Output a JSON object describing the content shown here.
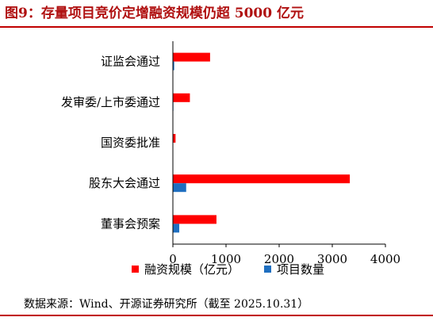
{
  "header": {
    "title": "图9：存量项目竞价定增融资规模仍超 5000 亿元"
  },
  "footer": {
    "source": "数据来源：Wind、开源证券研究所（截至 2025.10.31）"
  },
  "colors": {
    "series1": "#ff0000",
    "series2": "#1f6fc0",
    "title": "#b01010",
    "rule": "#c00000"
  },
  "chart_data": {
    "type": "bar",
    "orientation": "horizontal",
    "categories": [
      "证监会通过",
      "发审委/上市委通过",
      "国资委批准",
      "股东大会通过",
      "董事会预案"
    ],
    "series": [
      {
        "name": "融资规模（亿元）",
        "values": [
          700,
          320,
          50,
          3330,
          820
        ]
      },
      {
        "name": "项目数量",
        "values": [
          25,
          10,
          3,
          250,
          120
        ]
      }
    ],
    "xlim": [
      0,
      4000
    ],
    "xticks": [
      "0",
      "1000",
      "2000",
      "3000",
      "4000"
    ],
    "grid": false,
    "legend": "bottom"
  }
}
